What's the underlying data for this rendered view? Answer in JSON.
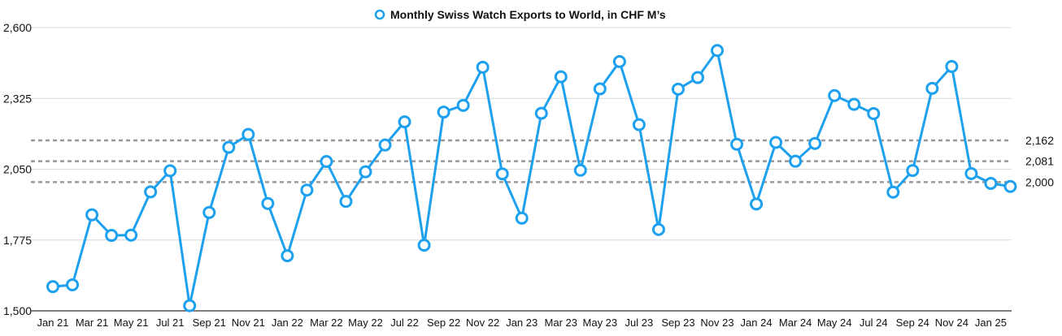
{
  "chart_data": {
    "type": "line",
    "title": "",
    "xlabel": "",
    "ylabel": "",
    "ylim": [
      1500,
      2600
    ],
    "yticks": [
      "1,500",
      "1,775",
      "2,050",
      "2,325",
      "2,600"
    ],
    "ytick_values": [
      1500,
      1775,
      2050,
      2325,
      2600
    ],
    "x": [
      "Jan 21",
      "Feb 21",
      "Mar 21",
      "Apr 21",
      "May 21",
      "Jun 21",
      "Jul 21",
      "Aug 21",
      "Sep 21",
      "Oct 21",
      "Nov 21",
      "Dec 21",
      "Jan 22",
      "Feb 22",
      "Mar 22",
      "Apr 22",
      "May 22",
      "Jun 22",
      "Jul 22",
      "Aug 22",
      "Sep 22",
      "Oct 22",
      "Nov 22",
      "Dec 22",
      "Jan 23",
      "Feb 23",
      "Mar 23",
      "Apr 23",
      "May 23",
      "Jun 23",
      "Jul 23",
      "Aug 23",
      "Sep 23",
      "Oct 23",
      "Nov 23",
      "Dec 23",
      "Jan 24",
      "Feb 24",
      "Mar 24",
      "Apr 24",
      "May 24",
      "Jun 24",
      "Jul 24",
      "Aug 24",
      "Sep 24",
      "Oct 24",
      "Nov 24",
      "Dec 24",
      "Jan 25",
      "Feb 25"
    ],
    "xtick_labels": [
      "Jan 21",
      "Mar 21",
      "May 21",
      "Jul 21",
      "Sep 21",
      "Nov 21",
      "Jan 22",
      "Mar 22",
      "May 22",
      "Jul 22",
      "Sep 22",
      "Nov 22",
      "Jan 23",
      "Mar 23",
      "May 23",
      "Jul 23",
      "Sep 23",
      "Nov 23",
      "Jan 24",
      "Mar 24",
      "May 24",
      "Jul 24",
      "Sep 24",
      "Nov 24",
      "Jan 25"
    ],
    "series": [
      {
        "name": "Monthly Swiss Watch Exports to World, in CHF M’s",
        "color": "#1da1ee",
        "values": [
          1594,
          1601,
          1873,
          1793,
          1794,
          1962,
          2044,
          1520,
          1882,
          2135,
          2185,
          1917,
          1714,
          1969,
          2080,
          1925,
          2040,
          2144,
          2234,
          1755,
          2272,
          2298,
          2446,
          2032,
          1860,
          2267,
          2409,
          2046,
          2362,
          2468,
          2223,
          1816,
          2361,
          2406,
          2511,
          2147,
          1915,
          2154,
          2081,
          2150,
          2336,
          2302,
          2266,
          1961,
          2045,
          2364,
          2449,
          2033,
          1995,
          1983
        ]
      }
    ],
    "reference_lines": [
      {
        "value": 2162,
        "label": "2,162"
      },
      {
        "value": 2081,
        "label": "2,081"
      },
      {
        "value": 2000,
        "label": "2,000"
      }
    ],
    "grid": true,
    "legend": "top-center",
    "colors": {
      "line": "#1da1ee",
      "marker_fill": "#ffffff",
      "grid": "#d9d9d9",
      "reference": "#999999",
      "axis": "#333333"
    }
  }
}
